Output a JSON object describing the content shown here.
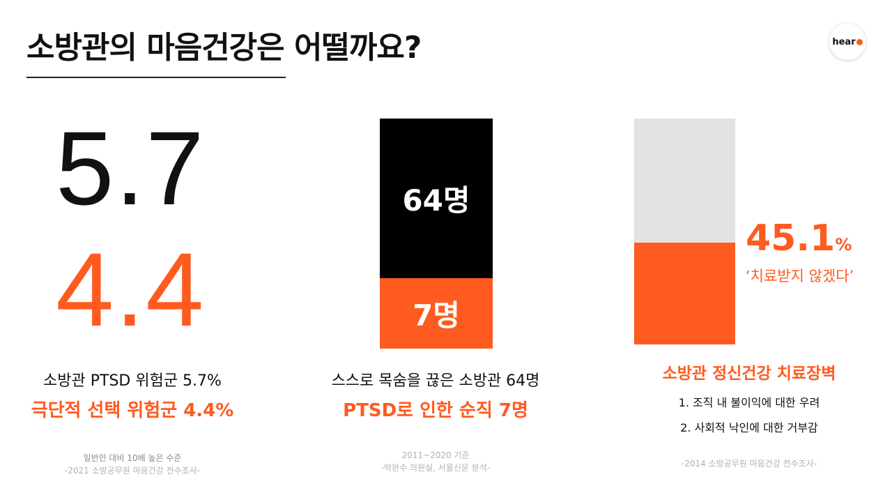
{
  "title": "소방관의 마음건강은 어떨까요?",
  "logo": {
    "text": "hear"
  },
  "colors": {
    "accent": "#ff5a1f",
    "dark": "#000000",
    "gray": "#e3e3e3"
  },
  "col1": {
    "big_black": "5.7",
    "big_orange": "4.4",
    "line1": "소방관 PTSD 위험군 5.7%",
    "line2": "극단적 선택 위험군 4.4%",
    "note1": "일반인 대비 10배 높은 수준",
    "note2": "-2021 소방공무원 마음건강 전수조사-"
  },
  "col2": {
    "bar_top_label": "64명",
    "bar_bottom_label": "7명",
    "line1": "스스로 목숨을 끊은 소방관 64명",
    "line2": "PTSD로 인한 순직 7명",
    "note1": "2011~2020 기준",
    "note2": "-박완수 의원실, 서울신문 분석-"
  },
  "col3": {
    "fill_percent": 45.1,
    "pct_num": "45.1",
    "pct_unit": "%",
    "quote": "‘치료받지 않겠다’",
    "heading": "소방관 정신건강 치료장벽",
    "items": [
      "1. 조직 내 불이익에 대한 우려",
      "2. 사회적 낙인에 대한 거부감"
    ],
    "note": "-2014 소방공무원 마음건강 전수조사-"
  }
}
